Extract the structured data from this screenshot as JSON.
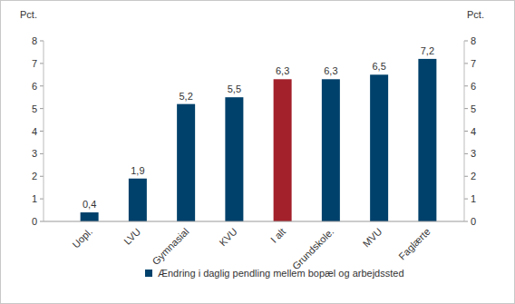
{
  "chart_data": {
    "type": "bar",
    "ylabel": "Pct.",
    "y2label": "Pct.",
    "categories": [
      "Uopl.",
      "LVU",
      "Gymnasial",
      "KVU",
      "I alt",
      "Grundskole.",
      "MVU",
      "Faglærte"
    ],
    "series": [
      {
        "name": "Ændring i daglig pendling mellem bopæl og arbejdssted",
        "color": "#00416b",
        "colors": [
          "#00416b",
          "#00416b",
          "#00416b",
          "#00416b",
          "#a3212b",
          "#00416b",
          "#00416b",
          "#00416b"
        ],
        "values": [
          0.4,
          1.9,
          5.2,
          5.5,
          6.3,
          6.3,
          6.5,
          7.2
        ],
        "value_labels": [
          "0,4",
          "1,9",
          "5,2",
          "5,5",
          "6,3",
          "6,3",
          "6,5",
          "7,2"
        ]
      }
    ],
    "ylim": [
      0,
      8
    ],
    "yticks": [
      0,
      1,
      2,
      3,
      4,
      5,
      6,
      7,
      8
    ],
    "y2lim": [
      0,
      8
    ],
    "y2ticks": [
      0,
      1,
      2,
      3,
      4,
      5,
      6,
      7,
      8
    ],
    "data_labels": true,
    "legend": "bottom",
    "grid": false
  }
}
